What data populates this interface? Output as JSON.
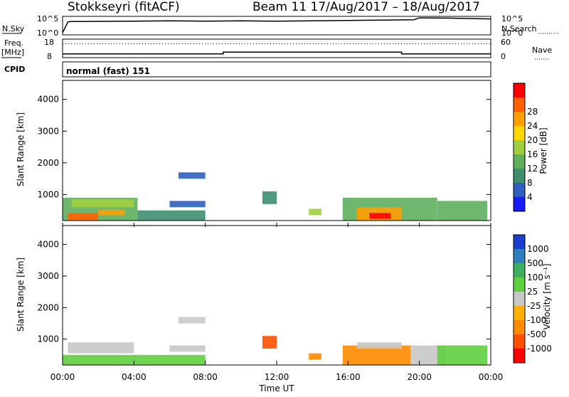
{
  "header": {
    "station": "Stokkseyri (fitACF)",
    "beam_time": "Beam 11   17/Aug/2017 – 18/Aug/2017"
  },
  "strip_labels": {
    "nsky": "N.Sky",
    "nsky_ticks": [
      "10^5",
      "10^0"
    ],
    "nsearch": "N.Search",
    "nsearch_ticks": [
      "10^5",
      "10^0"
    ],
    "freq": "Freq.",
    "freq_unit": "[MHz]",
    "freq_ticks": [
      "18",
      "8"
    ],
    "nave": "Nave",
    "nave_ticks": [
      "60",
      "0"
    ],
    "cpid": "CPID",
    "cpid_value": "normal (fast) 151"
  },
  "colors": {
    "power_scale": [
      "#1a1aff",
      "#2f5fbf",
      "#3f8f6f",
      "#5faf5f",
      "#9fcf3f",
      "#ffd700",
      "#ff9f00",
      "#ff6000",
      "#ff0000"
    ],
    "velocity_scale": [
      "#ff0000",
      "#ff5000",
      "#ff8a00",
      "#ffb000",
      "#c8c8c8",
      "#5fcf3f",
      "#3faf5f",
      "#2f7fbf",
      "#1a3fcf"
    ]
  },
  "chart_data": [
    {
      "type": "line",
      "name": "N.Sky / N.Search",
      "x_label_ticks": [
        "00:00",
        "04:00",
        "08:00",
        "12:00",
        "16:00",
        "20:00",
        "00:00"
      ],
      "series": [
        {
          "name": "N.Sky",
          "x_hours": [
            0,
            0.3,
            0.4,
            4,
            6,
            8,
            10,
            12,
            14,
            16,
            18,
            19.7,
            20,
            22,
            24
          ],
          "y_log10": [
            0.6,
            3.5,
            3.6,
            3.7,
            3.8,
            3.7,
            3.8,
            3.7,
            3.8,
            3.9,
            4.0,
            4.1,
            4.6,
            4.5,
            4.3
          ]
        }
      ]
    },
    {
      "type": "line",
      "name": "Freq / Nave",
      "series": [
        {
          "name": "Freq.",
          "x_hours": [
            0,
            9,
            9,
            19,
            19,
            24
          ],
          "y": [
            10,
            10,
            11,
            11,
            10,
            10
          ]
        },
        {
          "name": "Nave",
          "x_hours": [
            0,
            24
          ],
          "y": [
            45,
            45
          ]
        }
      ]
    },
    {
      "type": "heatmap",
      "title": "Power",
      "ylabel": "Slant Range [km]",
      "ylim": [
        180,
        4600
      ],
      "y_ticks": [
        1000,
        2000,
        3000,
        4000
      ],
      "colorbar_label": "Power [dB]",
      "colorbar_ticks": [
        "4",
        "8",
        "12",
        "16",
        "20",
        "24",
        "28"
      ],
      "regions": [
        {
          "t0": 0.0,
          "t1": 4.2,
          "r0": 190,
          "r1": 900,
          "level": 3
        },
        {
          "t0": 0.5,
          "t1": 4.0,
          "r0": 600,
          "r1": 850,
          "level": 4
        },
        {
          "t0": 0.3,
          "t1": 2.0,
          "r0": 200,
          "r1": 420,
          "level": 7
        },
        {
          "t0": 2.0,
          "t1": 3.5,
          "r0": 350,
          "r1": 520,
          "level": 6
        },
        {
          "t0": 4.2,
          "t1": 8.0,
          "r0": 190,
          "r1": 500,
          "level": 2
        },
        {
          "t0": 6.0,
          "t1": 8.0,
          "r0": 600,
          "r1": 800,
          "level": 1
        },
        {
          "t0": 6.5,
          "t1": 8.0,
          "r0": 1500,
          "r1": 1700,
          "level": 1
        },
        {
          "t0": 11.2,
          "t1": 12.0,
          "r0": 700,
          "r1": 1100,
          "level": 2
        },
        {
          "t0": 13.8,
          "t1": 14.5,
          "r0": 350,
          "r1": 550,
          "level": 4
        },
        {
          "t0": 15.7,
          "t1": 21.0,
          "r0": 190,
          "r1": 900,
          "level": 3
        },
        {
          "t0": 16.5,
          "t1": 19.0,
          "r0": 200,
          "r1": 600,
          "level": 6
        },
        {
          "t0": 17.2,
          "t1": 18.4,
          "r0": 240,
          "r1": 420,
          "level": 8
        },
        {
          "t0": 21.0,
          "t1": 23.8,
          "r0": 190,
          "r1": 800,
          "level": 3
        }
      ]
    },
    {
      "type": "heatmap",
      "title": "Velocity",
      "ylabel": "Slant Range [km]",
      "ylim": [
        180,
        4600
      ],
      "y_ticks": [
        1000,
        2000,
        3000,
        4000
      ],
      "colorbar_label": "Velocity [m s⁻¹]",
      "colorbar_ticks": [
        "1000",
        "500",
        "100",
        "25",
        "-25",
        "-100",
        "-500",
        "-1000"
      ],
      "xlabel": "Time UT",
      "x_label_ticks": [
        "00:00",
        "04:00",
        "08:00",
        "12:00",
        "16:00",
        "20:00",
        "00:00"
      ],
      "regions": [
        {
          "t0": 0.0,
          "t1": 4.2,
          "r0": 190,
          "r1": 500,
          "level": 5
        },
        {
          "t0": 0.3,
          "t1": 4.0,
          "r0": 550,
          "r1": 900,
          "level": 4
        },
        {
          "t0": 4.2,
          "t1": 8.0,
          "r0": 190,
          "r1": 500,
          "level": 5
        },
        {
          "t0": 6.0,
          "t1": 8.0,
          "r0": 600,
          "r1": 800,
          "level": 4
        },
        {
          "t0": 6.5,
          "t1": 8.0,
          "r0": 1500,
          "r1": 1700,
          "level": 4
        },
        {
          "t0": 11.2,
          "t1": 12.0,
          "r0": 700,
          "r1": 1100,
          "level": 1
        },
        {
          "t0": 13.8,
          "t1": 14.5,
          "r0": 350,
          "r1": 550,
          "level": 2
        },
        {
          "t0": 15.7,
          "t1": 19.5,
          "r0": 190,
          "r1": 800,
          "level": 2
        },
        {
          "t0": 16.5,
          "t1": 19.0,
          "r0": 700,
          "r1": 900,
          "level": 4
        },
        {
          "t0": 19.5,
          "t1": 21.5,
          "r0": 190,
          "r1": 800,
          "level": 4
        },
        {
          "t0": 21.0,
          "t1": 23.8,
          "r0": 190,
          "r1": 800,
          "level": 5
        }
      ]
    }
  ]
}
